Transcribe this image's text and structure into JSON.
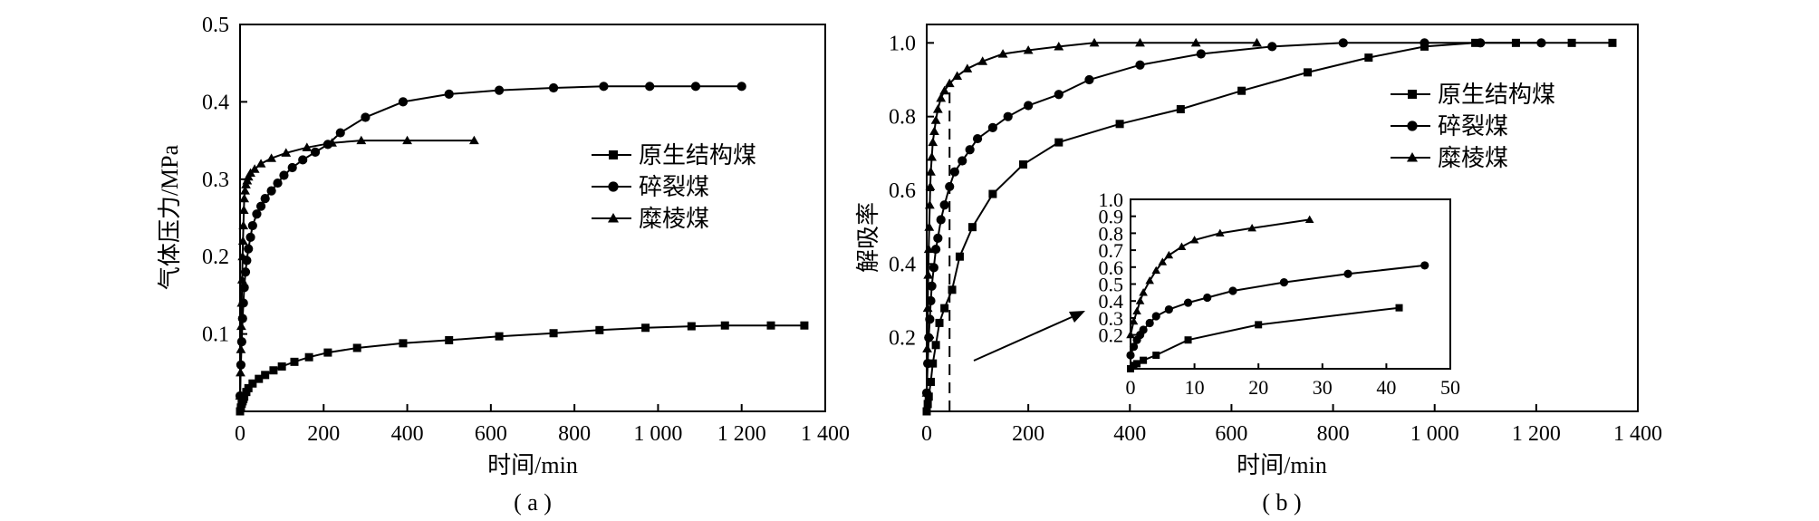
{
  "chart_data": [
    {
      "id": "a",
      "type": "line",
      "panel_label": "( a )",
      "xlabel": "时间/min",
      "ylabel": "气体压力/MPa",
      "xlim": [
        0,
        1400
      ],
      "ylim": [
        0,
        0.5
      ],
      "x_tick_values": [
        0,
        200,
        400,
        600,
        800,
        1000,
        1200,
        1400
      ],
      "x_tick_labels": [
        "0",
        "200",
        "400",
        "600",
        "800",
        "1 000",
        "1 200",
        "1 400"
      ],
      "y_tick_values": [
        0.1,
        0.2,
        0.3,
        0.4,
        0.5
      ],
      "y_tick_labels": [
        "0.1",
        "0.2",
        "0.3",
        "0.4",
        "0.5"
      ],
      "grid": false,
      "legend_position": "right-center",
      "series": [
        {
          "name": "原生结构煤",
          "marker": "square",
          "color": "#000000",
          "x": [
            0,
            2,
            4,
            6,
            8,
            10,
            15,
            20,
            30,
            45,
            60,
            80,
            100,
            130,
            165,
            210,
            280,
            390,
            500,
            620,
            750,
            860,
            970,
            1080,
            1160,
            1270,
            1350
          ],
          "y": [
            0,
            0.005,
            0.01,
            0.013,
            0.016,
            0.019,
            0.025,
            0.03,
            0.036,
            0.042,
            0.047,
            0.053,
            0.058,
            0.064,
            0.07,
            0.076,
            0.082,
            0.088,
            0.092,
            0.097,
            0.101,
            0.105,
            0.108,
            0.11,
            0.111,
            0.111,
            0.111
          ]
        },
        {
          "name": "碎裂煤",
          "marker": "circle",
          "color": "#000000",
          "x": [
            0,
            2,
            4,
            6,
            8,
            10,
            13,
            16,
            20,
            25,
            30,
            40,
            50,
            60,
            75,
            90,
            105,
            125,
            150,
            180,
            210,
            240,
            300,
            390,
            500,
            620,
            750,
            870,
            980,
            1090,
            1200
          ],
          "y": [
            0.02,
            0.06,
            0.09,
            0.12,
            0.14,
            0.16,
            0.18,
            0.195,
            0.21,
            0.225,
            0.24,
            0.255,
            0.265,
            0.275,
            0.285,
            0.295,
            0.305,
            0.315,
            0.325,
            0.335,
            0.345,
            0.36,
            0.38,
            0.4,
            0.41,
            0.415,
            0.418,
            0.42,
            0.42,
            0.42,
            0.42
          ]
        },
        {
          "name": "糜棱煤",
          "marker": "triangle",
          "color": "#000000",
          "x": [
            0,
            1,
            2,
            3,
            4,
            5,
            6,
            7,
            8,
            9,
            10,
            12,
            14,
            17,
            20,
            25,
            35,
            50,
            75,
            110,
            160,
            220,
            290,
            400,
            560
          ],
          "y": [
            0.02,
            0.05,
            0.08,
            0.11,
            0.14,
            0.17,
            0.2,
            0.22,
            0.24,
            0.26,
            0.275,
            0.285,
            0.293,
            0.298,
            0.303,
            0.308,
            0.313,
            0.32,
            0.327,
            0.334,
            0.341,
            0.347,
            0.35,
            0.35,
            0.35
          ]
        }
      ]
    },
    {
      "id": "b",
      "type": "line",
      "panel_label": "( b )",
      "xlabel": "时间/min",
      "ylabel": "解吸率",
      "xlim": [
        0,
        1400
      ],
      "ylim": [
        0,
        1.05
      ],
      "x_tick_values": [
        0,
        200,
        400,
        600,
        800,
        1000,
        1200,
        1400
      ],
      "x_tick_labels": [
        "0",
        "200",
        "400",
        "600",
        "800",
        "1 000",
        "1 200",
        "1 400"
      ],
      "y_tick_values": [
        0.2,
        0.4,
        0.6,
        0.8,
        1.0
      ],
      "y_tick_labels": [
        "0.2",
        "0.4",
        "0.6",
        "0.8",
        "1.0"
      ],
      "grid": false,
      "legend_position": "right-top",
      "reference_line_x": 45,
      "series": [
        {
          "name": "原生结构煤",
          "marker": "square",
          "color": "#000000",
          "x": [
            0,
            2,
            4,
            8,
            12,
            18,
            25,
            35,
            50,
            65,
            90,
            130,
            190,
            260,
            380,
            500,
            620,
            750,
            870,
            980,
            1080,
            1160,
            1270,
            1350
          ],
          "y": [
            0,
            0.02,
            0.04,
            0.08,
            0.13,
            0.18,
            0.24,
            0.28,
            0.33,
            0.42,
            0.5,
            0.59,
            0.67,
            0.73,
            0.78,
            0.82,
            0.87,
            0.92,
            0.96,
            0.99,
            1.0,
            1.0,
            1.0,
            1.0
          ]
        },
        {
          "name": "碎裂煤",
          "marker": "circle",
          "color": "#000000",
          "x": [
            0,
            2,
            4,
            6,
            8,
            10,
            14,
            18,
            22,
            28,
            35,
            45,
            55,
            70,
            85,
            100,
            130,
            160,
            200,
            260,
            320,
            420,
            540,
            680,
            820,
            980,
            1090,
            1210
          ],
          "y": [
            0.05,
            0.13,
            0.2,
            0.25,
            0.3,
            0.34,
            0.39,
            0.44,
            0.47,
            0.52,
            0.56,
            0.61,
            0.65,
            0.68,
            0.71,
            0.74,
            0.77,
            0.8,
            0.83,
            0.86,
            0.9,
            0.94,
            0.97,
            0.99,
            1.0,
            1.0,
            1.0,
            1.0
          ]
        },
        {
          "name": "糜棱煤",
          "marker": "triangle",
          "color": "#000000",
          "x": [
            0,
            1,
            2,
            3,
            4,
            5,
            6,
            7,
            8,
            10,
            12,
            15,
            18,
            22,
            28,
            35,
            45,
            60,
            80,
            110,
            150,
            200,
            260,
            330,
            420,
            530,
            650
          ],
          "y": [
            0.05,
            0.17,
            0.28,
            0.37,
            0.44,
            0.5,
            0.56,
            0.61,
            0.65,
            0.69,
            0.73,
            0.76,
            0.79,
            0.82,
            0.85,
            0.87,
            0.89,
            0.91,
            0.93,
            0.95,
            0.97,
            0.98,
            0.99,
            1.0,
            1.0,
            1.0,
            1.0
          ]
        }
      ]
    },
    {
      "id": "b-inset",
      "type": "line",
      "xlim": [
        0,
        50
      ],
      "ylim": [
        0,
        1.0
      ],
      "x_tick_values": [
        0,
        10,
        20,
        30,
        40,
        50
      ],
      "x_tick_labels": [
        "0",
        "10",
        "20",
        "30",
        "40",
        "50"
      ],
      "y_tick_values": [
        0.2,
        0.3,
        0.4,
        0.5,
        0.6,
        0.7,
        0.8,
        0.9,
        1.0
      ],
      "y_tick_labels": [
        "0.2",
        "0.3",
        "0.4",
        "0.5",
        "0.6",
        "0.7",
        "0.8",
        "0.9",
        "1.0"
      ],
      "grid": false,
      "series": [
        {
          "name": "原生结构煤",
          "marker": "square",
          "color": "#000000",
          "x": [
            0,
            0.5,
            1,
            2,
            4,
            9,
            20,
            42
          ],
          "y": [
            0,
            0.02,
            0.03,
            0.05,
            0.08,
            0.17,
            0.26,
            0.36
          ]
        },
        {
          "name": "碎裂煤",
          "marker": "circle",
          "color": "#000000",
          "x": [
            0,
            0.5,
            1,
            1.5,
            2,
            3,
            4,
            6,
            9,
            12,
            16,
            24,
            34,
            46
          ],
          "y": [
            0.08,
            0.13,
            0.17,
            0.2,
            0.23,
            0.27,
            0.31,
            0.35,
            0.39,
            0.42,
            0.46,
            0.51,
            0.56,
            0.61
          ]
        },
        {
          "name": "糜棱煤",
          "marker": "triangle",
          "color": "#000000",
          "x": [
            0,
            0.5,
            1,
            1.5,
            2,
            3,
            4,
            5,
            6,
            8,
            10,
            14,
            19,
            28
          ],
          "y": [
            0.2,
            0.28,
            0.34,
            0.4,
            0.45,
            0.52,
            0.58,
            0.63,
            0.67,
            0.72,
            0.76,
            0.8,
            0.83,
            0.88
          ]
        }
      ]
    }
  ]
}
